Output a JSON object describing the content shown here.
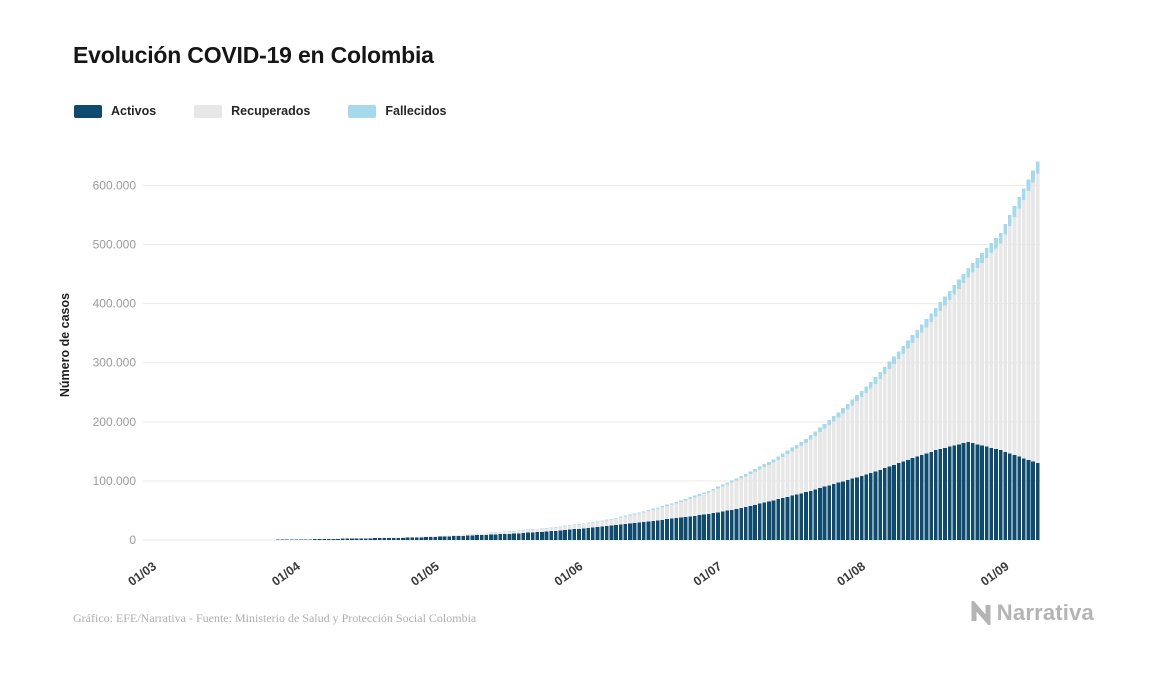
{
  "title": "Evolución COVID-19 en Colombia",
  "legend": [
    {
      "label": "Activos",
      "color": "#0e4b6e"
    },
    {
      "label": "Recuperados",
      "color": "#e7e7e7"
    },
    {
      "label": "Fallecidos",
      "color": "#a6d9ec"
    }
  ],
  "footer": {
    "credit": "Gráfico: EFE/Narrativa - Fuente: Ministerio de Salud y Protección Social Colombia",
    "brand": "Narrativa"
  },
  "chart_data": {
    "type": "bar",
    "stacked": true,
    "title": "Evolución COVID-19 en Colombia",
    "ylabel": "Número de casos",
    "xlabel": "",
    "x_tick_labels": [
      "01/03",
      "01/04",
      "01/05",
      "01/06",
      "01/07",
      "01/08",
      "01/09"
    ],
    "y_ticks": [
      0,
      100000,
      200000,
      300000,
      400000,
      500000,
      600000
    ],
    "y_tick_labels": [
      "0",
      "100.000",
      "200.000",
      "300.000",
      "400.000",
      "500.000",
      "600.000"
    ],
    "ylim": [
      0,
      660000
    ],
    "grid": true,
    "legend_position": "top-left",
    "date_range": [
      "01/03",
      "07/09"
    ],
    "dates": [
      "01/03",
      "08/03",
      "15/03",
      "22/03",
      "29/03",
      "05/04",
      "12/04",
      "19/04",
      "26/04",
      "03/05",
      "10/05",
      "17/05",
      "24/05",
      "31/05",
      "07/06",
      "14/06",
      "21/06",
      "28/06",
      "05/07",
      "12/07",
      "19/07",
      "26/07",
      "02/08",
      "09/08",
      "16/08",
      "23/08",
      "30/08",
      "07/09"
    ],
    "series": [
      {
        "name": "Activos",
        "color": "#0e4b6e",
        "values": [
          0,
          1,
          30,
          210,
          700,
          1400,
          2450,
          3200,
          4200,
          6200,
          8400,
          10800,
          14300,
          19000,
          24500,
          30500,
          37000,
          44000,
          54000,
          67000,
          81000,
          97000,
          113000,
          133000,
          152000,
          166000,
          152000,
          130000
        ]
      },
      {
        "name": "Recuperados",
        "color": "#e7e7e7",
        "values": [
          0,
          1,
          1,
          10,
          30,
          120,
          300,
          700,
          1100,
          1700,
          2800,
          4000,
          5300,
          7100,
          10000,
          16000,
          25000,
          36000,
          50000,
          64000,
          83000,
          110000,
          143000,
          182000,
          226000,
          278000,
          350000,
          490000
        ]
      },
      {
        "name": "Fallecidos",
        "color": "#a6d9ec",
        "values": [
          0,
          0,
          0,
          2,
          10,
          40,
          100,
          180,
          250,
          350,
          480,
          630,
          800,
          1000,
          1300,
          1800,
          2400,
          3100,
          4000,
          5300,
          7000,
          9000,
          11000,
          13000,
          14800,
          16200,
          17800,
          20500
        ]
      }
    ]
  }
}
